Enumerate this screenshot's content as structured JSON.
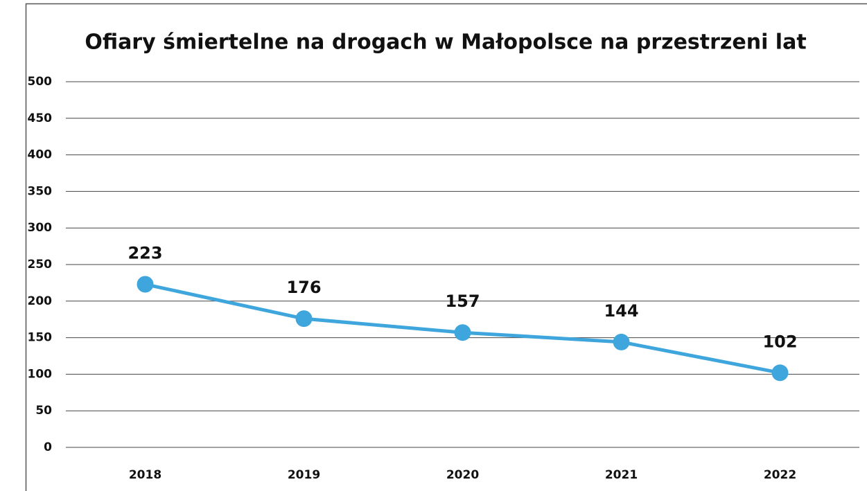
{
  "chart_data": {
    "type": "line",
    "title": "Ofiary śmiertelne na drogach w Małopolsce na przestrzeni lat",
    "categories": [
      "2018",
      "2019",
      "2020",
      "2021",
      "2022"
    ],
    "series": [
      {
        "name": "Ofiary śmiertelne",
        "color": "#3ea6dc",
        "values": [
          223,
          176,
          157,
          144,
          102
        ]
      }
    ],
    "ylim": [
      0,
      500
    ],
    "yticks": [
      0,
      50,
      100,
      150,
      200,
      250,
      300,
      350,
      400,
      450,
      500
    ],
    "grid": true
  }
}
